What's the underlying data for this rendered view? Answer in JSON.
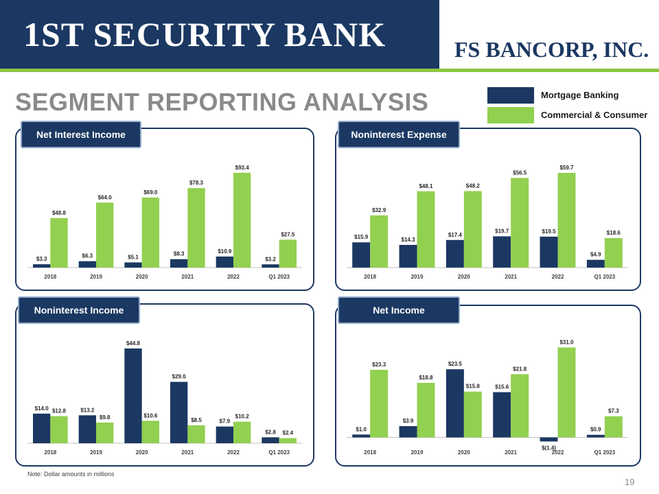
{
  "header": {
    "bank_logo": "1ST SECURITY BANK",
    "bancorp_logo": "FS BANCORP, INC."
  },
  "page": {
    "title": "SEGMENT REPORTING ANALYSIS",
    "note": "Note: Dollar amounts in millions",
    "page_number": "19"
  },
  "legend": {
    "items": [
      {
        "label": "Mortgage Banking",
        "color": "#1b3862"
      },
      {
        "label": "Commercial & Consumer",
        "color": "#92d050"
      }
    ]
  },
  "colors": {
    "primary": "#1b3862",
    "accent": "#92d050",
    "title_gray": "#8a8a8a"
  },
  "chart_data": [
    {
      "type": "bar",
      "title": "Net Interest Income",
      "categories": [
        "2018",
        "2019",
        "2020",
        "2021",
        "2022",
        "Q1 2023"
      ],
      "series": [
        {
          "name": "Mortgage Banking",
          "values": [
            3.3,
            6.3,
            5.1,
            8.3,
            10.9,
            3.2
          ],
          "labels": [
            "$3.3",
            "$6.3",
            "$5.1",
            "$8.3",
            "$10.9",
            "$3.2"
          ]
        },
        {
          "name": "Commercial & Consumer",
          "values": [
            48.8,
            64.0,
            69.0,
            78.3,
            93.4,
            27.5
          ],
          "labels": [
            "$48.8",
            "$64.0",
            "$69.0",
            "$78.3",
            "$93.4",
            "$27.5"
          ]
        }
      ],
      "ylim": [
        0,
        100
      ]
    },
    {
      "type": "bar",
      "title": "Noninterest Expense",
      "categories": [
        "2018",
        "2019",
        "2020",
        "2021",
        "2022",
        "Q1 2023"
      ],
      "series": [
        {
          "name": "Mortgage Banking",
          "values": [
            15.9,
            14.3,
            17.4,
            19.7,
            19.5,
            4.9
          ],
          "labels": [
            "$15.9",
            "$14.3",
            "$17.4",
            "$19.7",
            "$19.5",
            "$4.9"
          ]
        },
        {
          "name": "Commercial & Consumer",
          "values": [
            32.9,
            48.1,
            48.2,
            56.5,
            59.7,
            18.6
          ],
          "labels": [
            "$32.9",
            "$48.1",
            "$48.2",
            "$56.5",
            "$59.7",
            "$18.6"
          ]
        }
      ],
      "ylim": [
        0,
        64
      ]
    },
    {
      "type": "bar",
      "title": "Noninterest Income",
      "categories": [
        "2018",
        "2019",
        "2020",
        "2021",
        "2022",
        "Q1 2023"
      ],
      "series": [
        {
          "name": "Mortgage Banking",
          "values": [
            14.0,
            13.2,
            44.8,
            29.0,
            7.9,
            2.8
          ],
          "labels": [
            "$14.0",
            "$13.2",
            "$44.8",
            "$29.0",
            "$7.9",
            "$2.8"
          ]
        },
        {
          "name": "Commercial & Consumer",
          "values": [
            12.8,
            9.8,
            10.6,
            8.5,
            10.2,
            2.4
          ],
          "labels": [
            "$12.8",
            "$9.8",
            "$10.6",
            "$8.5",
            "$10.2",
            "$2.4"
          ]
        }
      ],
      "ylim": [
        0,
        48
      ]
    },
    {
      "type": "bar",
      "title": "Net Income",
      "categories": [
        "2018",
        "2019",
        "2020",
        "2021",
        "2022",
        "Q1 2023"
      ],
      "series": [
        {
          "name": "Mortgage Banking",
          "values": [
            1.0,
            3.9,
            23.5,
            15.6,
            -1.4,
            0.9
          ],
          "labels": [
            "$1.0",
            "$3.9",
            "$23.5",
            "$15.6",
            "$(1.4)",
            "$0.9"
          ]
        },
        {
          "name": "Commercial & Consumer",
          "values": [
            23.3,
            18.8,
            15.8,
            21.8,
            31.0,
            7.3
          ],
          "labels": [
            "$23.3",
            "$18.8",
            "$15.8",
            "$21.8",
            "$31.0",
            "$7.3"
          ]
        }
      ],
      "ylim": [
        -2,
        33
      ]
    }
  ]
}
